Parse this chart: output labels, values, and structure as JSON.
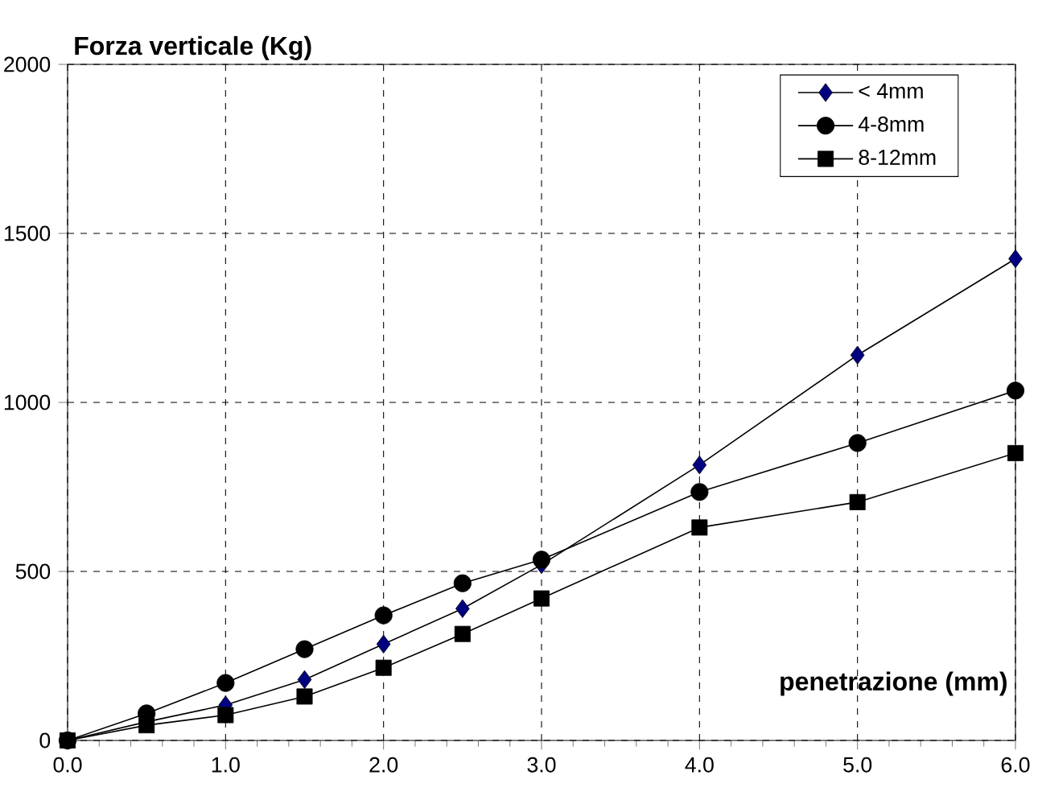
{
  "chart_data": {
    "type": "line",
    "xlabel": "penetrazione (mm)",
    "ylabel": "Forza verticale (Kg)",
    "xlim": [
      0,
      6
    ],
    "ylim": [
      0,
      2000
    ],
    "xticks": [
      {
        "value": 0,
        "label": "0.0"
      },
      {
        "value": 1,
        "label": "1.0"
      },
      {
        "value": 2,
        "label": "2.0"
      },
      {
        "value": 3,
        "label": "3.0"
      },
      {
        "value": 4,
        "label": "4.0"
      },
      {
        "value": 5,
        "label": "5.0"
      },
      {
        "value": 6,
        "label": "6.0"
      }
    ],
    "yticks": [
      0,
      500,
      1000,
      1500,
      2000
    ],
    "grid": true,
    "legend": "top right",
    "series": [
      {
        "name": "< 4mm",
        "color": "#000080",
        "marker": "diamond",
        "x": [
          0,
          0.5,
          1,
          1.5,
          2,
          2.5,
          3,
          4,
          5,
          6
        ],
        "values": [
          0,
          55,
          105,
          180,
          285,
          390,
          520,
          815,
          1140,
          1425
        ]
      },
      {
        "name": "4-8mm",
        "color": "#000000",
        "marker": "circle",
        "x": [
          0,
          0.5,
          1,
          1.5,
          2,
          2.5,
          3,
          4,
          5,
          6
        ],
        "values": [
          0,
          80,
          170,
          270,
          370,
          465,
          535,
          735,
          880,
          1035
        ]
      },
      {
        "name": "8-12mm",
        "color": "#000000",
        "marker": "square",
        "x": [
          0,
          0.5,
          1,
          1.5,
          2,
          2.5,
          3,
          4,
          5,
          6
        ],
        "values": [
          0,
          45,
          75,
          130,
          215,
          315,
          420,
          630,
          705,
          850
        ]
      }
    ]
  }
}
